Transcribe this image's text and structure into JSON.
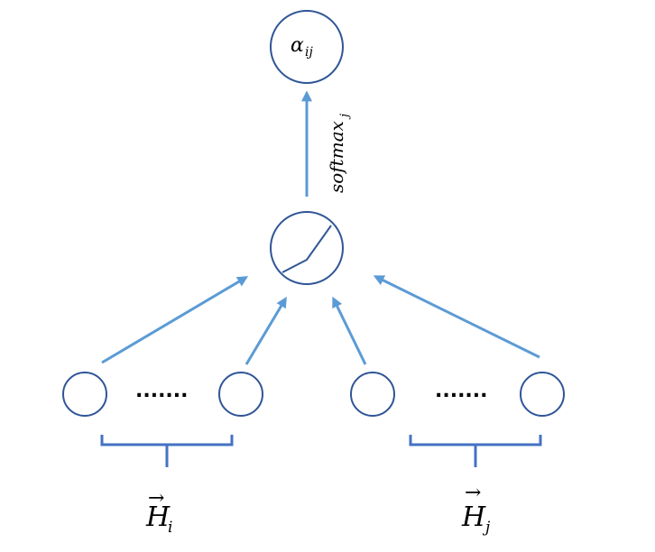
{
  "nodes": {
    "output_label": "α",
    "output_sub": "ij"
  },
  "edge_label": {
    "main": "softmax",
    "sub": "j"
  },
  "ellipsis_left": ".......",
  "ellipsis_right": ".......",
  "group_left": {
    "letter": "H",
    "sub": "i",
    "arrow": "→"
  },
  "group_right": {
    "letter": "H",
    "sub": "j",
    "arrow": "→"
  },
  "colors": {
    "node_stroke": "#2f5597",
    "arrow": "#5b9bd5",
    "brace": "#4472c4"
  }
}
